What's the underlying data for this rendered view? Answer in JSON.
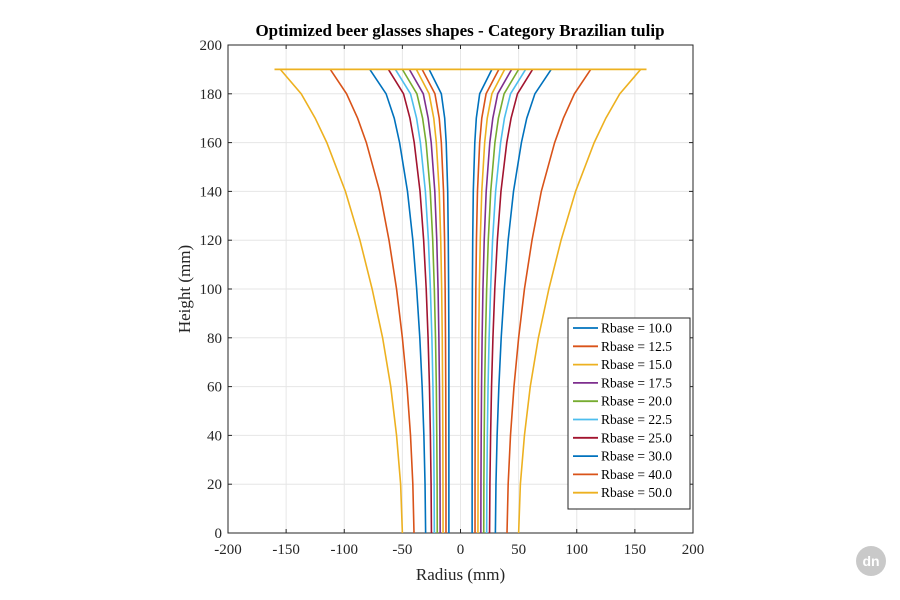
{
  "chart_data": {
    "type": "line",
    "title": "Optimized beer glasses shapes - Category Brazilian tulip",
    "xlabel": "Radius (mm)",
    "ylabel": "Height (mm)",
    "xlim": [
      -200,
      200
    ],
    "ylim": [
      0,
      200
    ],
    "xticks": [
      "-200",
      "-150",
      "-100",
      "-50",
      "0",
      "50",
      "100",
      "150",
      "200"
    ],
    "yticks": [
      "0",
      "20",
      "40",
      "60",
      "80",
      "100",
      "120",
      "140",
      "160",
      "180",
      "200"
    ],
    "grid": true,
    "legend_position": "bottom-right",
    "height_max": 190,
    "shape_profile": {
      "heights": [
        0,
        20,
        40,
        60,
        80,
        100,
        120,
        140,
        160,
        170,
        180,
        190
      ],
      "note_free": true
    },
    "series": [
      {
        "name": "Rbase = 10.0",
        "color": "#0072BD",
        "radius": [
          10,
          10,
          10,
          10,
          10,
          10.2,
          10.5,
          11,
          12.3,
          13.6,
          16.5,
          27
        ]
      },
      {
        "name": "Rbase = 12.5",
        "color": "#D95319",
        "radius": [
          12.5,
          12.5,
          12.6,
          12.7,
          12.9,
          13.2,
          13.7,
          14.6,
          16.5,
          18.3,
          22,
          33
        ]
      },
      {
        "name": "Rbase = 15.0",
        "color": "#EDB120",
        "radius": [
          15,
          15.1,
          15.2,
          15.4,
          15.7,
          16.2,
          17,
          18.3,
          20.8,
          23,
          27,
          38
        ]
      },
      {
        "name": "Rbase = 17.5",
        "color": "#7E2F8E",
        "radius": [
          17.5,
          17.6,
          17.8,
          18.1,
          18.6,
          19.3,
          20.4,
          22.1,
          25.2,
          27.8,
          32,
          44
        ]
      },
      {
        "name": "Rbase = 20.0",
        "color": "#77AC30",
        "radius": [
          20,
          20.1,
          20.4,
          20.8,
          21.5,
          22.5,
          23.9,
          26,
          29.6,
          32.6,
          37.5,
          50
        ]
      },
      {
        "name": "Rbase = 22.5",
        "color": "#4DBEEE",
        "radius": [
          22.5,
          22.7,
          23.1,
          23.7,
          24.6,
          25.9,
          27.6,
          30.2,
          34.5,
          37.8,
          43,
          56
        ]
      },
      {
        "name": "Rbase = 25.0",
        "color": "#A2142F",
        "radius": [
          25,
          25.3,
          25.9,
          26.7,
          27.9,
          29.5,
          31.7,
          34.8,
          39.8,
          43.5,
          49,
          62
        ]
      },
      {
        "name": "Rbase = 30.0",
        "color": "#0072BD",
        "radius": [
          30,
          30.5,
          31.5,
          33,
          35,
          37.7,
          41,
          45.6,
          52.4,
          57,
          64,
          78
        ]
      },
      {
        "name": "Rbase = 40.0",
        "color": "#D95319",
        "radius": [
          40,
          41,
          43,
          46,
          50,
          55,
          61.5,
          69.5,
          81,
          88.5,
          98,
          112
        ]
      },
      {
        "name": "Rbase = 50.0",
        "color": "#EDB120",
        "radius": [
          50,
          51.5,
          55,
          60,
          67,
          76,
          86.5,
          99,
          115,
          125,
          137,
          155
        ]
      }
    ],
    "rim": {
      "height": 190,
      "x_min": -160,
      "x_max": 160,
      "color": "#EDB120"
    }
  },
  "watermark": {
    "text": "dn"
  }
}
